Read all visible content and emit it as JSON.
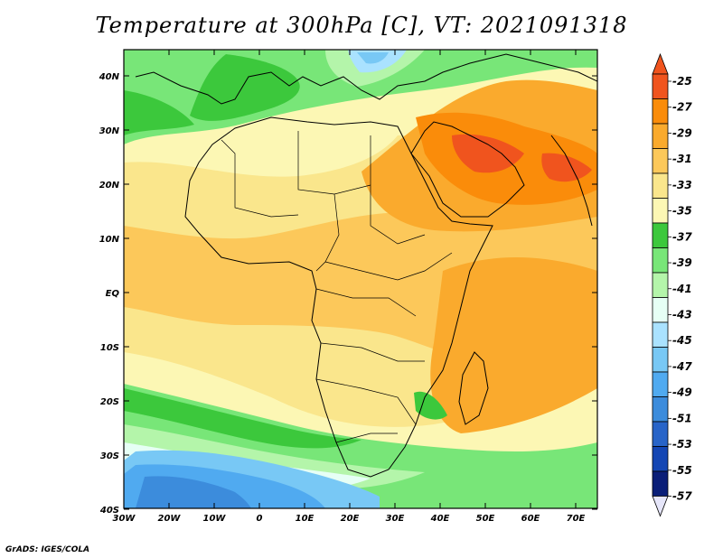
{
  "title": "Temperature at 300hPa [C], VT: 2021091318",
  "credit": "GrADS: IGES/COLA",
  "lon_labels": [
    "30W",
    "20W",
    "10W",
    "0",
    "10E",
    "20E",
    "30E",
    "40E",
    "50E",
    "60E",
    "70E"
  ],
  "lat_labels": [
    "40N",
    "30N",
    "20N",
    "10N",
    "EQ",
    "10S",
    "20S",
    "30S",
    "40S"
  ],
  "colorbar": {
    "labels": [
      "-25",
      "-27",
      "-29",
      "-31",
      "-33",
      "-35",
      "-37",
      "-39",
      "-41",
      "-43",
      "-45",
      "-47",
      "-49",
      "-51",
      "-53",
      "-55",
      "-57"
    ],
    "colors": [
      "#f0541e",
      "#fa8c0a",
      "#faaa2d",
      "#fcc85a",
      "#fae68c",
      "#fcf7b4",
      "#3cc83c",
      "#78e678",
      "#b4f5aa",
      "#e6fff5",
      "#aae2ff",
      "#78c8f5",
      "#50aaf0",
      "#3c8cdc",
      "#2864c8",
      "#1446b4",
      "#0a1e78"
    ],
    "top_color": "#f0541e",
    "bottom_color": "#e6e6fa"
  }
}
